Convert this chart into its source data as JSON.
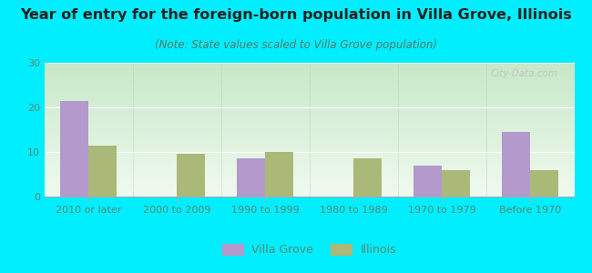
{
  "title": "Year of entry for the foreign-born population in Villa Grove, Illinois",
  "subtitle": "(Note: State values scaled to Villa Grove population)",
  "categories": [
    "2010 or later",
    "2000 to 2009",
    "1990 to 1999",
    "1980 to 1989",
    "1970 to 1979",
    "Before 1970"
  ],
  "villa_grove": [
    21.5,
    0,
    8.5,
    0,
    7.0,
    14.5
  ],
  "illinois": [
    11.5,
    9.5,
    10.0,
    8.5,
    6.0,
    6.0
  ],
  "villa_grove_color": "#b399cc",
  "illinois_color": "#aab878",
  "background_outer": "#00eeff",
  "background_inner_top": "#f0faf0",
  "background_inner_bottom": "#c8e8c8",
  "ylim": [
    0,
    30
  ],
  "yticks": [
    0,
    10,
    20,
    30
  ],
  "bar_width": 0.32,
  "title_fontsize": 11.5,
  "subtitle_fontsize": 8.5,
  "tick_fontsize": 8,
  "legend_fontsize": 9,
  "axis_label_color": "#558877",
  "title_color": "#222222",
  "subtitle_color": "#557766"
}
